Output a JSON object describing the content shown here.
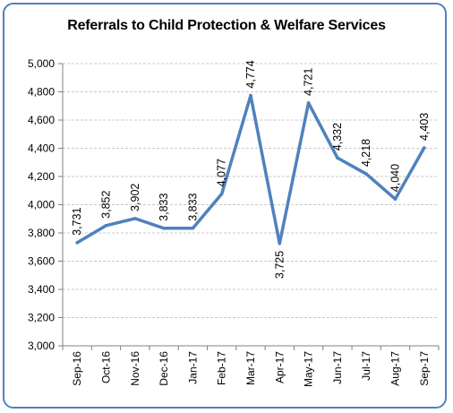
{
  "chart_data": {
    "type": "line",
    "title": "Referrals to Child Protection & Welfare Services",
    "categories": [
      "Sep-16",
      "Oct-16",
      "Nov-16",
      "Dec-16",
      "Jan-17",
      "Feb-17",
      "Mar-17",
      "Apr-17",
      "May-17",
      "Jun-17",
      "Jul-17",
      "Aug-17",
      "Sep-17"
    ],
    "values": [
      3731,
      3852,
      3902,
      3833,
      3833,
      4077,
      4774,
      3725,
      4721,
      4332,
      4218,
      4040,
      4403
    ],
    "data_labels": [
      "3,731",
      "3,852",
      "3,902",
      "3,833",
      "3,833",
      "4,077",
      "4,774",
      "3,725",
      "4,721",
      "4,332",
      "4,218",
      "4,040",
      "4,403"
    ],
    "y_ticks": [
      "3,000",
      "3,200",
      "3,400",
      "3,600",
      "3,800",
      "4,000",
      "4,200",
      "4,400",
      "4,600",
      "4,800",
      "5,000"
    ],
    "ylim": [
      3000,
      5000
    ],
    "xlabel": "",
    "ylabel": "",
    "grid": "horizontal",
    "line_color": "#4f81bd",
    "gridline_color": "#c8c8c8",
    "frame_color": "#4f81bd"
  }
}
